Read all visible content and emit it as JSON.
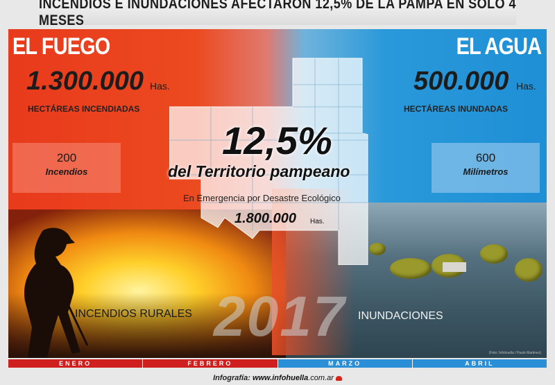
{
  "headline": "INCENDIOS E INUNDACIONES AFECTARON 12,5% DE LA PAMPA EN SOLO 4 MESES",
  "left": {
    "title": "EL FUEGO",
    "amount": "1.300.000",
    "unit": "Has.",
    "subtitle": "HECTÁREAS INCENDIADAS",
    "stat_value": "200",
    "stat_label": "Incendios",
    "caption": "INCENDIOS RURALES"
  },
  "right": {
    "title": "EL AGUA",
    "amount": "500.000",
    "unit": "Has.",
    "subtitle": "HECTÁREAS INUNDADAS",
    "stat_value": "600",
    "stat_label": "Milímetros",
    "caption": "INUNDACIONES"
  },
  "center": {
    "percent": "12,5%",
    "territory": "del Territorio pampeano",
    "emergency": "En Emergencia por Desastre Ecológico",
    "hectares": "1.800.000",
    "hectares_unit": "Has."
  },
  "year": "2017",
  "photo_credit": "(Foto: Infohuella / Paulo Martinez)",
  "months": [
    {
      "label": "ENERO",
      "color": "#cf1f1f"
    },
    {
      "label": "FEBRERO",
      "color": "#cf1f1f"
    },
    {
      "label": "MARZO",
      "color": "#2a8fd6"
    },
    {
      "label": "ABRIL",
      "color": "#2a8fd6"
    }
  ],
  "footer": {
    "prefix": "Infografía:",
    "site_bold": "www.infohuella",
    "site_rest": ".com.ar"
  }
}
